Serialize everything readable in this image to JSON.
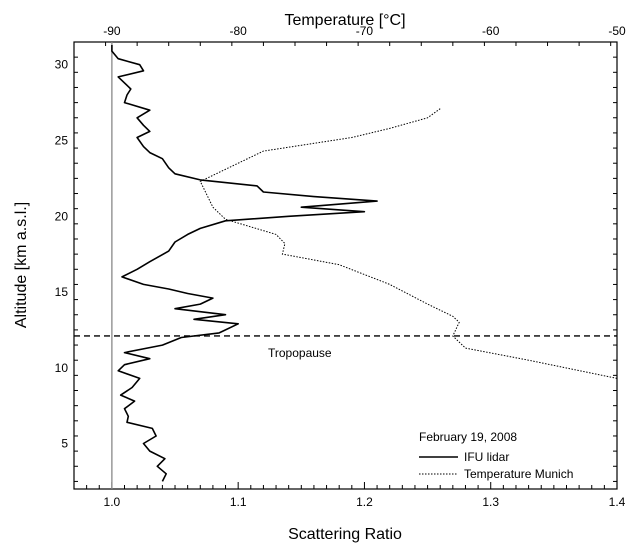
{
  "chart_data": {
    "type": "line",
    "xlabel_bottom": "Scattering Ratio",
    "xlabel_top": "Temperature [°C]",
    "ylabel": "Altitude [km a.s.l.]",
    "xlim_bottom": [
      0.97,
      1.4
    ],
    "xlim_top": [
      -93,
      -50
    ],
    "ylim": [
      2,
      31.5
    ],
    "x_ticks_bottom": [
      "1.0",
      "1.1",
      "1.2",
      "1.3",
      "1.4"
    ],
    "x_ticks_top": [
      "-90",
      "-80",
      "-70",
      "-60",
      "-50"
    ],
    "y_ticks": [
      "5",
      "10",
      "15",
      "20",
      "25",
      "30"
    ],
    "grid": false,
    "legend": {
      "title": "February 19, 2008",
      "placement": "bottom-right",
      "entries": [
        "IFU lidar",
        "Temperature Munich"
      ]
    },
    "reference_line": {
      "x": 1.0,
      "color": "#888888"
    },
    "tropopause": {
      "label": "Tropopause",
      "y": 12.1
    },
    "series": [
      {
        "name": "IFU lidar",
        "axis": "bottom",
        "style": "solid",
        "points": [
          [
            1.04,
            2.5
          ],
          [
            1.043,
            3.0
          ],
          [
            1.036,
            3.5
          ],
          [
            1.042,
            4.0
          ],
          [
            1.03,
            4.5
          ],
          [
            1.025,
            5.0
          ],
          [
            1.035,
            5.5
          ],
          [
            1.032,
            6.0
          ],
          [
            1.012,
            6.4
          ],
          [
            1.013,
            6.8
          ],
          [
            1.01,
            7.3
          ],
          [
            1.018,
            7.8
          ],
          [
            1.007,
            8.2
          ],
          [
            1.016,
            8.7
          ],
          [
            1.022,
            9.3
          ],
          [
            1.005,
            9.8
          ],
          [
            1.01,
            10.2
          ],
          [
            1.03,
            10.6
          ],
          [
            1.01,
            11.0
          ],
          [
            1.04,
            11.5
          ],
          [
            1.055,
            12.0
          ],
          [
            1.085,
            12.3
          ],
          [
            1.1,
            12.9
          ],
          [
            1.065,
            13.2
          ],
          [
            1.09,
            13.5
          ],
          [
            1.05,
            13.9
          ],
          [
            1.07,
            14.2
          ],
          [
            1.08,
            14.6
          ],
          [
            1.06,
            14.9
          ],
          [
            1.045,
            15.2
          ],
          [
            1.025,
            15.5
          ],
          [
            1.008,
            16.0
          ],
          [
            1.02,
            16.5
          ],
          [
            1.03,
            17.0
          ],
          [
            1.045,
            17.7
          ],
          [
            1.05,
            18.3
          ],
          [
            1.06,
            18.8
          ],
          [
            1.07,
            19.2
          ],
          [
            1.09,
            19.7
          ],
          [
            1.14,
            20.0
          ],
          [
            1.2,
            20.3
          ],
          [
            1.15,
            20.6
          ],
          [
            1.21,
            21.0
          ],
          [
            1.16,
            21.3
          ],
          [
            1.12,
            21.6
          ],
          [
            1.115,
            22.0
          ],
          [
            1.07,
            22.4
          ],
          [
            1.05,
            22.8
          ],
          [
            1.045,
            23.2
          ],
          [
            1.04,
            23.8
          ],
          [
            1.03,
            24.2
          ],
          [
            1.025,
            24.6
          ],
          [
            1.02,
            25.2
          ],
          [
            1.03,
            25.6
          ],
          [
            1.025,
            26.0
          ],
          [
            1.02,
            26.5
          ],
          [
            1.03,
            27.0
          ],
          [
            1.01,
            27.5
          ],
          [
            1.012,
            28.0
          ],
          [
            1.015,
            28.4
          ],
          [
            1.01,
            28.8
          ],
          [
            1.005,
            29.2
          ],
          [
            1.025,
            29.6
          ],
          [
            1.022,
            30.0
          ],
          [
            1.005,
            30.4
          ],
          [
            1.0,
            30.9
          ],
          [
            1.0,
            31.3
          ]
        ]
      },
      {
        "name": "Temperature Munich",
        "axis": "top",
        "style": "dotted",
        "points": [
          [
            -50,
            9.3
          ],
          [
            -57,
            10.5
          ],
          [
            -62,
            11.3
          ],
          [
            -63,
            12.1
          ],
          [
            -62.5,
            13.0
          ],
          [
            -63,
            13.4
          ],
          [
            -65,
            14.2
          ],
          [
            -68,
            15.5
          ],
          [
            -72,
            16.8
          ],
          [
            -76.5,
            17.5
          ],
          [
            -76.3,
            18.2
          ],
          [
            -77,
            18.8
          ],
          [
            -81,
            19.8
          ],
          [
            -82,
            20.6
          ],
          [
            -83,
            22.3
          ],
          [
            -80,
            23.5
          ],
          [
            -78,
            24.3
          ],
          [
            -71,
            25.2
          ],
          [
            -68,
            25.8
          ],
          [
            -65,
            26.5
          ],
          [
            -64,
            27.1
          ]
        ]
      }
    ]
  }
}
